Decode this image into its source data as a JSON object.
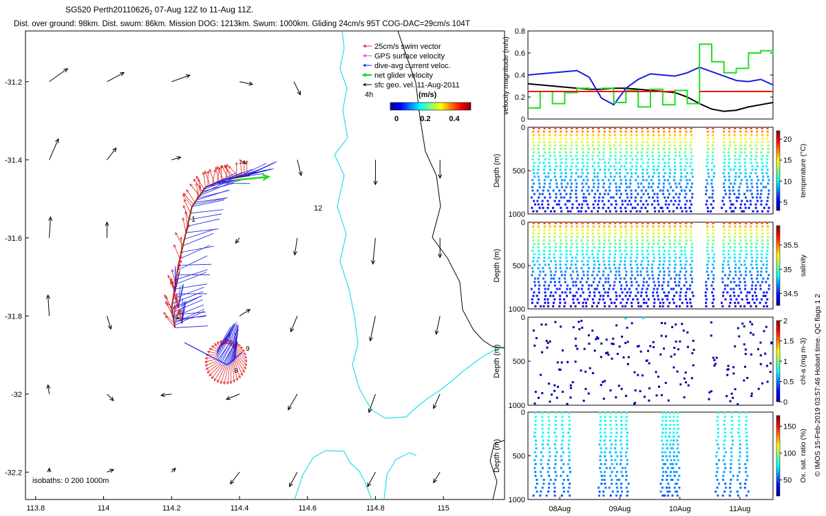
{
  "header": {
    "title_line1": "SG520 Perth20110626",
    "title_sub": "2",
    "title_line1_rest": " 07-Aug 12Z to 11-Aug 11Z.",
    "title_line2": "Dist. over ground: 98km. Dist. swum: 86km. Mission DOG: 1213km. Swum: 1000km. Gliding 24cm/s 95T COG-DAC=29cm/s 104T"
  },
  "side_note": "© IMOS 15-Feb-2019 03:57:46 Hobart time. QC flags 1  2",
  "map": {
    "x_ticks": [
      "113.8",
      "114",
      "114.2",
      "114.4",
      "114.6",
      "114.8",
      "115"
    ],
    "y_ticks": [
      "-31.2",
      "-31.4",
      "-31.6",
      "-31.8",
      "-32",
      "-32.2"
    ],
    "legend": [
      {
        "label": "25cm/s swim vector",
        "color": "#e02020"
      },
      {
        "label": "GPS surface velocity",
        "color": "#d040d0"
      },
      {
        "label": "dive-avg current veloc.",
        "color": "#1a1ae0"
      },
      {
        "label": "net glider velocity",
        "color": "#22dd22"
      },
      {
        "label": "sfc geo. vel. 11-Aug-2011",
        "color": "#000000"
      }
    ],
    "colorbar_title": "(m/s)",
    "colorbar_ticks": [
      "0",
      "0.2",
      "0.4"
    ],
    "time_label": "4h",
    "isobaths_label": "isobaths: 0   200  1000m",
    "day_labels": [
      "1",
      "12",
      "9",
      "8"
    ],
    "isobath_color": "#22ddee"
  },
  "velocity_panel": {
    "ylabel": "velocity magnitude (m/s)",
    "y_ticks": [
      "0",
      "0.2",
      "0.4",
      "0.6",
      "0.8"
    ]
  },
  "profiles": [
    {
      "ylabel": "Depth (m)",
      "cbar_label": "temperature (°C)",
      "cbar_ticks": [
        "5",
        "10",
        "15",
        "20"
      ],
      "y_ticks": [
        "0",
        "500",
        "1000"
      ]
    },
    {
      "ylabel": "Depth (m)",
      "cbar_label": "salinity",
      "cbar_ticks": [
        "34.5",
        "35",
        "35.5"
      ],
      "y_ticks": [
        "0",
        "500",
        "1000"
      ]
    },
    {
      "ylabel": "Depth (m)",
      "cbar_label": "chl-a (mg m-3)",
      "cbar_ticks": [
        "0",
        "0.5",
        "1",
        "1.5",
        "2"
      ],
      "y_ticks": [
        "0",
        "500",
        "1000"
      ]
    },
    {
      "ylabel": "Depth (m)",
      "cbar_label": "Ox. sat. ratio (%)",
      "cbar_ticks": [
        "50",
        "100",
        "150"
      ],
      "y_ticks": [
        "0",
        "500",
        "1000"
      ]
    }
  ],
  "time_axis": {
    "labels": [
      "08Aug",
      "09Aug",
      "10Aug",
      "11Aug"
    ]
  },
  "chart_data": [
    {
      "type": "scatter",
      "title": "SG520 Perth20110626 07-Aug 12Z to 11-Aug 11Z.",
      "subtitle": "Dist. over ground: 98km. Dist. swum: 86km. Mission DOG: 1213km. Swum: 1000km. Gliding 24cm/s 95T COG-DAC=29cm/s 104T",
      "xlim": [
        113.77,
        115.18
      ],
      "ylim": [
        -32.27,
        -31.07
      ],
      "glider_track": {
        "lon": [
          114.21,
          114.2,
          114.22,
          114.26,
          114.3,
          114.36,
          114.43
        ],
        "lat": [
          -31.83,
          -31.78,
          -31.67,
          -31.52,
          -31.47,
          -31.45,
          -31.44
        ]
      },
      "geo_vectors": [
        {
          "lon": 113.84,
          "lat": -31.2,
          "u": 0.14,
          "v": 0.1
        },
        {
          "lon": 114.01,
          "lat": -31.2,
          "u": 0.13,
          "v": 0.07
        },
        {
          "lon": 114.2,
          "lat": -31.2,
          "u": 0.14,
          "v": 0.05
        },
        {
          "lon": 114.4,
          "lat": -31.2,
          "u": 0.1,
          "v": -0.02
        },
        {
          "lon": 114.56,
          "lat": -31.2,
          "u": 0.05,
          "v": -0.1
        },
        {
          "lon": 113.84,
          "lat": -31.4,
          "u": 0.07,
          "v": 0.16
        },
        {
          "lon": 114.01,
          "lat": -31.4,
          "u": 0.07,
          "v": 0.09
        },
        {
          "lon": 114.2,
          "lat": -31.4,
          "u": 0.07,
          "v": 0.02
        },
        {
          "lon": 114.4,
          "lat": -31.4,
          "u": 0.05,
          "v": -0.03
        },
        {
          "lon": 114.57,
          "lat": -31.4,
          "u": 0.03,
          "v": -0.12
        },
        {
          "lon": 114.8,
          "lat": -31.4,
          "u": 0.0,
          "v": -0.19
        },
        {
          "lon": 114.99,
          "lat": -31.4,
          "u": 0.0,
          "v": -0.14
        },
        {
          "lon": 113.84,
          "lat": -31.6,
          "u": 0.01,
          "v": 0.16
        },
        {
          "lon": 114.01,
          "lat": -31.6,
          "u": 0.0,
          "v": 0.12
        },
        {
          "lon": 114.4,
          "lat": -31.6,
          "u": -0.03,
          "v": -0.04
        },
        {
          "lon": 114.57,
          "lat": -31.6,
          "u": -0.02,
          "v": -0.13
        },
        {
          "lon": 114.8,
          "lat": -31.6,
          "u": -0.02,
          "v": -0.2
        },
        {
          "lon": 114.99,
          "lat": -31.6,
          "u": 0.0,
          "v": -0.15
        },
        {
          "lon": 113.84,
          "lat": -31.8,
          "u": -0.01,
          "v": 0.16
        },
        {
          "lon": 114.01,
          "lat": -31.8,
          "u": 0.03,
          "v": -0.1
        },
        {
          "lon": 114.2,
          "lat": -31.8,
          "u": 0.06,
          "v": -0.02
        },
        {
          "lon": 114.4,
          "lat": -31.8,
          "u": 0.08,
          "v": 0.05
        },
        {
          "lon": 114.57,
          "lat": -31.8,
          "u": -0.05,
          "v": -0.12
        },
        {
          "lon": 114.8,
          "lat": -31.8,
          "u": -0.04,
          "v": -0.19
        },
        {
          "lon": 114.99,
          "lat": -31.8,
          "u": -0.03,
          "v": -0.14
        },
        {
          "lon": 113.84,
          "lat": -32.0,
          "u": -0.01,
          "v": 0.07
        },
        {
          "lon": 114.01,
          "lat": -32.0,
          "u": 0.05,
          "v": -0.05
        },
        {
          "lon": 114.2,
          "lat": -32.0,
          "u": -0.08,
          "v": -0.01
        },
        {
          "lon": 114.4,
          "lat": -32.0,
          "u": -0.1,
          "v": -0.04
        },
        {
          "lon": 114.57,
          "lat": -32.0,
          "u": -0.07,
          "v": -0.12
        },
        {
          "lon": 114.8,
          "lat": -32.0,
          "u": -0.05,
          "v": -0.14
        },
        {
          "lon": 114.99,
          "lat": -32.0,
          "u": -0.05,
          "v": -0.11
        },
        {
          "lon": 113.84,
          "lat": -32.2,
          "u": 0.0,
          "v": 0.03
        },
        {
          "lon": 114.01,
          "lat": -32.2,
          "u": 0.05,
          "v": 0.02
        },
        {
          "lon": 114.2,
          "lat": -32.2,
          "u": 0.03,
          "v": 0.03
        },
        {
          "lon": 114.4,
          "lat": -32.2,
          "u": -0.07,
          "v": -0.09
        },
        {
          "lon": 114.57,
          "lat": -32.2,
          "u": -0.06,
          "v": -0.11
        },
        {
          "lon": 114.8,
          "lat": -32.2,
          "u": -0.06,
          "v": -0.11
        },
        {
          "lon": 114.99,
          "lat": -32.2,
          "u": -0.05,
          "v": -0.08
        }
      ]
    },
    {
      "type": "line",
      "ylabel": "velocity magnitude (m/s)",
      "ylim": [
        0,
        0.8
      ],
      "x": [
        0,
        0.05,
        0.1,
        0.15,
        0.2,
        0.25,
        0.3,
        0.35,
        0.4,
        0.45,
        0.5,
        0.55,
        0.6,
        0.65,
        0.7,
        0.75,
        0.8,
        0.85,
        0.9,
        0.95,
        1.0
      ],
      "series": [
        {
          "values": [
            0.32,
            0.31,
            0.3,
            0.29,
            0.28,
            0.27,
            0.27,
            0.28,
            0.28,
            0.27,
            0.26,
            0.25,
            0.24,
            0.2,
            0.14,
            0.09,
            0.07,
            0.08,
            0.11,
            0.13,
            0.15
          ],
          "color": "#000000"
        },
        {
          "values": [
            0.4,
            0.41,
            0.42,
            0.43,
            0.44,
            0.38,
            0.19,
            0.13,
            0.28,
            0.36,
            0.41,
            0.4,
            0.39,
            0.42,
            0.47,
            0.43,
            0.39,
            0.35,
            0.34,
            0.36,
            0.31
          ],
          "color": "#1a1ae0"
        },
        {
          "values": [
            0.1,
            0.25,
            0.14,
            0.24,
            0.28,
            0.25,
            0.28,
            0.15,
            0.26,
            0.11,
            0.27,
            0.13,
            0.26,
            0.14,
            0.68,
            0.52,
            0.42,
            0.46,
            0.6,
            0.62,
            0.58
          ],
          "color": "#22dd22"
        },
        {
          "values": [
            0.25,
            0.25,
            0.25,
            0.25,
            0.25,
            0.25,
            0.25,
            0.25,
            0.25,
            0.25,
            0.25,
            0.25,
            0.25,
            null,
            0.25,
            0.25,
            0.25,
            0.25,
            0.25,
            0.25,
            0.25
          ],
          "color": "#ee1111"
        }
      ]
    },
    {
      "type": "scatter",
      "ylabel": "Depth (m)",
      "ylim": [
        1000,
        0
      ],
      "colorbar": "temperature (°C)",
      "crange": [
        3,
        22
      ]
    },
    {
      "type": "scatter",
      "ylabel": "Depth (m)",
      "ylim": [
        1000,
        0
      ],
      "colorbar": "salinity",
      "crange": [
        34.25,
        35.9
      ]
    },
    {
      "type": "scatter",
      "ylabel": "Depth (m)",
      "ylim": [
        1000,
        0
      ],
      "colorbar": "chl-a (mg m-3)",
      "crange": [
        0,
        2
      ]
    },
    {
      "type": "scatter",
      "ylabel": "Depth (m)",
      "ylim": [
        1000,
        0
      ],
      "colorbar": "Ox. sat. ratio (%)",
      "crange": [
        20,
        170
      ]
    }
  ]
}
